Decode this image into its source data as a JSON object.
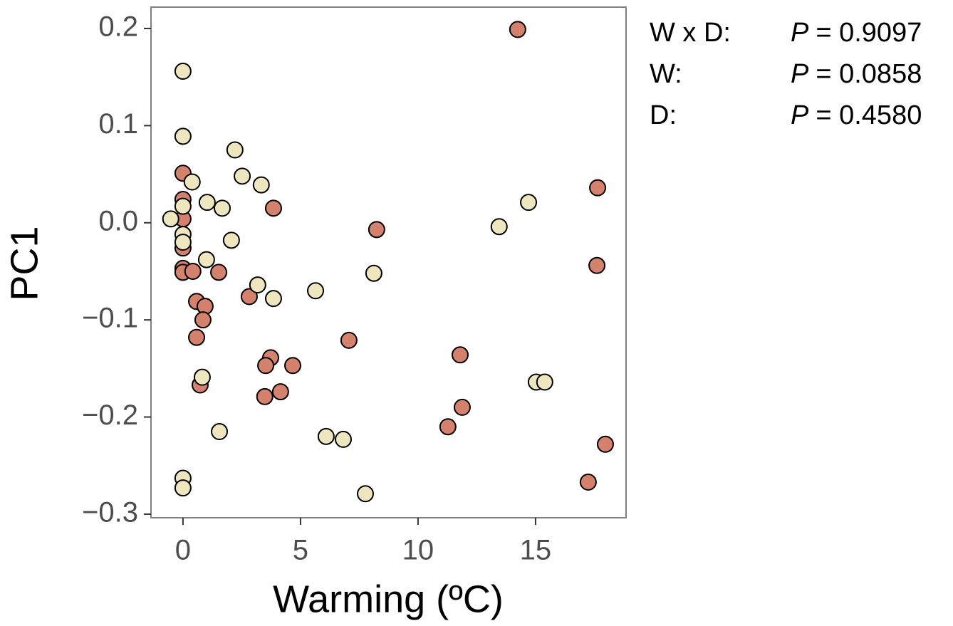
{
  "chart_data": {
    "type": "scatter",
    "x_label": "Warming (ºC)",
    "y_label": "PC1",
    "xlim": [
      -1.36,
      18.85
    ],
    "ylim": [
      -0.3037,
      0.222
    ],
    "xticks": [
      0,
      5,
      10,
      15
    ],
    "yticks": [
      {
        "value": -0.3,
        "label": "−0.3"
      },
      {
        "value": -0.2,
        "label": "−0.2"
      },
      {
        "value": -0.1,
        "label": "−0.1"
      },
      {
        "value": 0,
        "label": "0.0"
      },
      0.1,
      0.2
    ],
    "grid": false,
    "series": [
      {
        "color": "#d4816e",
        "x": [
          14.24,
          0,
          0,
          0,
          0,
          0,
          0,
          0.42,
          3.85,
          1.52,
          8.24,
          17.64,
          17.61,
          0.58,
          0.94,
          0.85,
          0.58,
          2.82,
          7.06,
          11.79,
          3.73,
          3.52,
          4.67,
          0.73,
          3.48,
          4.15,
          11.88,
          11.27,
          17.97,
          17.24
        ],
        "values": [
          0.199,
          0.051,
          0.024,
          0.004,
          -0.026,
          -0.047,
          -0.051,
          -0.05,
          0.015,
          -0.051,
          -0.007,
          0.036,
          -0.044,
          -0.081,
          -0.086,
          -0.1,
          -0.118,
          -0.076,
          -0.121,
          -0.136,
          -0.139,
          -0.147,
          -0.147,
          -0.167,
          -0.179,
          -0.174,
          -0.19,
          -0.21,
          -0.228,
          -0.267
        ]
      },
      {
        "color": "#ede6bf",
        "x": [
          0,
          0,
          2.21,
          2.52,
          3.33,
          0.39,
          0,
          1.03,
          1.67,
          -0.52,
          0,
          0,
          2.06,
          1.0,
          3.18,
          3.85,
          5.64,
          8.12,
          13.45,
          14.7,
          0.82,
          1.55,
          6.09,
          6.82,
          15.03,
          15.39,
          7.76,
          0,
          0
        ],
        "values": [
          0.156,
          0.089,
          0.075,
          0.048,
          0.039,
          0.042,
          0.017,
          0.021,
          0.015,
          0.004,
          -0.012,
          -0.02,
          -0.018,
          -0.038,
          -0.064,
          -0.078,
          -0.07,
          -0.052,
          -0.004,
          0.021,
          -0.159,
          -0.215,
          -0.22,
          -0.223,
          -0.164,
          -0.164,
          -0.279,
          -0.263,
          -0.273
        ]
      }
    ],
    "annotations": [
      {
        "term": "W x D:",
        "stat": "P",
        "text": "= 0.9097"
      },
      {
        "term": "W:",
        "stat": "P",
        "text": "= 0.0858"
      },
      {
        "term": "D:",
        "stat": "P",
        "text": "= 0.4580"
      }
    ]
  }
}
